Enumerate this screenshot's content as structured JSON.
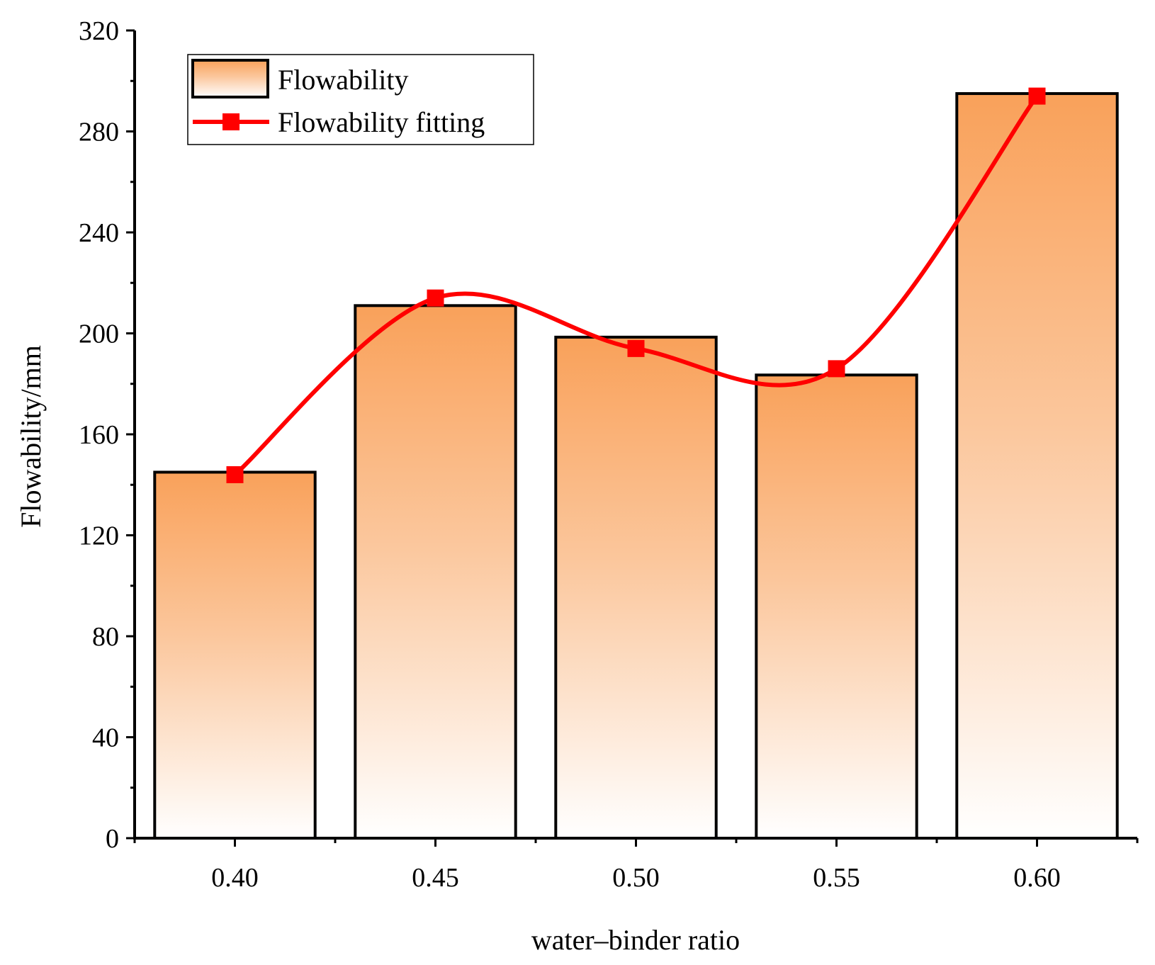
{
  "chart_data": {
    "type": "bar",
    "title": "",
    "xlabel": "water–binder ratio",
    "ylabel": "Flowability/mm",
    "categories": [
      "0.40",
      "0.45",
      "0.50",
      "0.55",
      "0.60"
    ],
    "ylim": [
      0,
      320
    ],
    "yticks": [
      "0",
      "40",
      "80",
      "120",
      "160",
      "200",
      "240",
      "280",
      "320"
    ],
    "series": [
      {
        "name": "Flowability",
        "kind": "bar",
        "values": [
          145,
          211,
          198.5,
          183.5,
          295
        ]
      },
      {
        "name": "Flowability fitting",
        "kind": "line",
        "values": [
          144,
          214,
          194,
          186,
          294
        ]
      }
    ],
    "legend_position": "top-left",
    "colors": {
      "bar_top": "#F9A15A",
      "bar_bottom": "#FFFFFF",
      "fit_line": "#FF0000",
      "axis": "#000000"
    }
  }
}
